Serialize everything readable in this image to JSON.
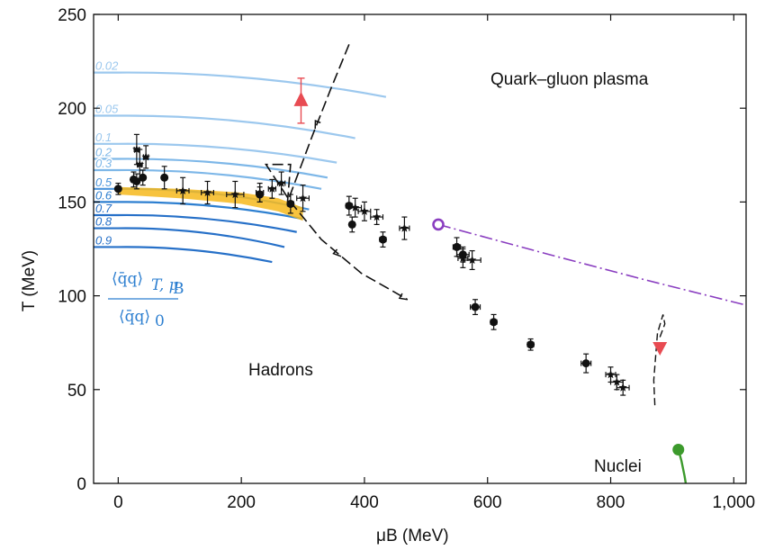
{
  "chart_data": {
    "type": "scatter",
    "xlabel": "μB (MeV)",
    "ylabel": "T (MeV)",
    "xlim": [
      -40,
      1020
    ],
    "ylim": [
      0,
      250
    ],
    "x_ticks": [
      "0",
      "200",
      "400",
      "600",
      "800",
      "1,000"
    ],
    "y_ticks": [
      "0",
      "50",
      "100",
      "150",
      "200",
      "250"
    ],
    "x_tick_values": [
      0,
      200,
      400,
      600,
      800,
      1000
    ],
    "y_tick_values": [
      0,
      50,
      100,
      150,
      200,
      250
    ],
    "regions": {
      "qgp": "Quark–gluon plasma",
      "hadrons": "Hadrons",
      "nuclei": "Nuclei"
    },
    "condensate_label": {
      "numerator": "⟨q̄q⟩",
      "numerator_sub": "T, μ",
      "numerator_subsub": "B",
      "denominator": "⟨q̄q⟩",
      "denominator_sub": "0"
    },
    "contour_colors": {
      "light": "#9cc8ee",
      "medium": "#5aa4e2",
      "dark": "#2670c8"
    },
    "contours": [
      {
        "label": "0.02",
        "y0": 219,
        "x_end": 435,
        "y_end": 206,
        "color": "#9cc8ee"
      },
      {
        "label": "0.05",
        "y0": 196,
        "x_end": 385,
        "y_end": 184,
        "color": "#9cc8ee"
      },
      {
        "label": "0.1",
        "y0": 181,
        "x_end": 355,
        "y_end": 171,
        "color": "#9cc8ee"
      },
      {
        "label": "0.2",
        "y0": 173,
        "x_end": 340,
        "y_end": 163,
        "color": "#7db7e8"
      },
      {
        "label": "0.3",
        "y0": 167,
        "x_end": 330,
        "y_end": 157,
        "color": "#7db7e8"
      },
      {
        "label": "0.5",
        "y0": 157,
        "x_end": 310,
        "y_end": 146,
        "color": "#4a94db"
      },
      {
        "label": "0.6",
        "y0": 150,
        "x_end": 300,
        "y_end": 141,
        "color": "#2d7fd0"
      },
      {
        "label": "0.7",
        "y0": 143,
        "x_end": 290,
        "y_end": 134,
        "color": "#2670c8"
      },
      {
        "label": "0.8",
        "y0": 136,
        "x_end": 270,
        "y_end": 126,
        "color": "#2670c8"
      },
      {
        "label": "0.9",
        "y0": 126,
        "x_end": 250,
        "y_end": 118,
        "color": "#2670c8"
      }
    ],
    "band": {
      "color": "#f6b81c",
      "upper": [
        [
          0,
          158
        ],
        [
          100,
          157
        ],
        [
          200,
          155
        ],
        [
          260,
          152
        ],
        [
          300,
          147
        ]
      ],
      "lower": [
        [
          300,
          140
        ],
        [
          260,
          145
        ],
        [
          200,
          149
        ],
        [
          100,
          152
        ],
        [
          0,
          154
        ]
      ]
    },
    "series": [
      {
        "marker": "circle",
        "color": "#111111",
        "points": [
          [
            0,
            157,
            3,
            3
          ],
          [
            25,
            162,
            4,
            4
          ],
          [
            30,
            161,
            4,
            4
          ],
          [
            40,
            163,
            4,
            4
          ],
          [
            75,
            163,
            3,
            6
          ],
          [
            230,
            154,
            4,
            4
          ],
          [
            280,
            149,
            5,
            5
          ],
          [
            375,
            148,
            5,
            5
          ],
          [
            380,
            138,
            4,
            4
          ],
          [
            430,
            130,
            5,
            4
          ],
          [
            550,
            126,
            6,
            5
          ],
          [
            560,
            122,
            10,
            4
          ],
          [
            580,
            94,
            8,
            4
          ],
          [
            610,
            86,
            5,
            4
          ],
          [
            670,
            74,
            5,
            3
          ],
          [
            760,
            64,
            8,
            5
          ]
        ]
      },
      {
        "marker": "star",
        "color": "#111111",
        "points": [
          [
            30,
            178,
            4,
            8
          ],
          [
            35,
            170,
            4,
            8
          ],
          [
            45,
            174,
            4,
            6
          ],
          [
            105,
            156,
            10,
            7
          ],
          [
            145,
            155,
            10,
            6
          ],
          [
            190,
            154,
            14,
            7
          ],
          [
            230,
            155,
            6,
            5
          ],
          [
            250,
            157,
            6,
            5
          ],
          [
            265,
            160,
            6,
            6
          ],
          [
            300,
            152,
            10,
            7
          ],
          [
            385,
            147,
            10,
            5
          ],
          [
            400,
            145,
            10,
            5
          ],
          [
            420,
            142,
            10,
            4
          ],
          [
            465,
            136,
            8,
            6
          ],
          [
            560,
            120,
            8,
            5
          ],
          [
            575,
            119,
            14,
            5
          ],
          [
            800,
            58,
            8,
            4
          ],
          [
            810,
            54,
            10,
            4
          ],
          [
            820,
            51,
            10,
            4
          ]
        ]
      }
    ],
    "critical_point": {
      "x": 520,
      "y": 138,
      "color": "#8a3ec0"
    },
    "first_order_line": {
      "color": "#8a3ec0",
      "points": [
        [
          520,
          138
        ],
        [
          700,
          122
        ],
        [
          850,
          109
        ],
        [
          1020,
          95
        ]
      ]
    },
    "red_triangle_up": {
      "x": 297,
      "y": 204,
      "err": 12,
      "color": "#e84b52"
    },
    "red_triangle_down": {
      "x": 880,
      "y": 72,
      "color": "#e84b52"
    },
    "green_point": {
      "x": 910,
      "y": 18,
      "color": "#3c9a2c"
    },
    "green_curve": [
      [
        910,
        18
      ],
      [
        915,
        12
      ],
      [
        920,
        4
      ],
      [
        922,
        0
      ]
    ],
    "trajectory1": [
      [
        375,
        234
      ],
      [
        345,
        210
      ],
      [
        315,
        185
      ],
      [
        275,
        150
      ],
      [
        280,
        170
      ],
      [
        240,
        170
      ],
      [
        280,
        150
      ],
      [
        330,
        130
      ],
      [
        395,
        112
      ],
      [
        470,
        98
      ]
    ],
    "trajectory2": [
      [
        880,
        78
      ],
      [
        888,
        85
      ],
      [
        885,
        90
      ],
      [
        876,
        80
      ],
      [
        870,
        55
      ],
      [
        872,
        40
      ]
    ]
  }
}
